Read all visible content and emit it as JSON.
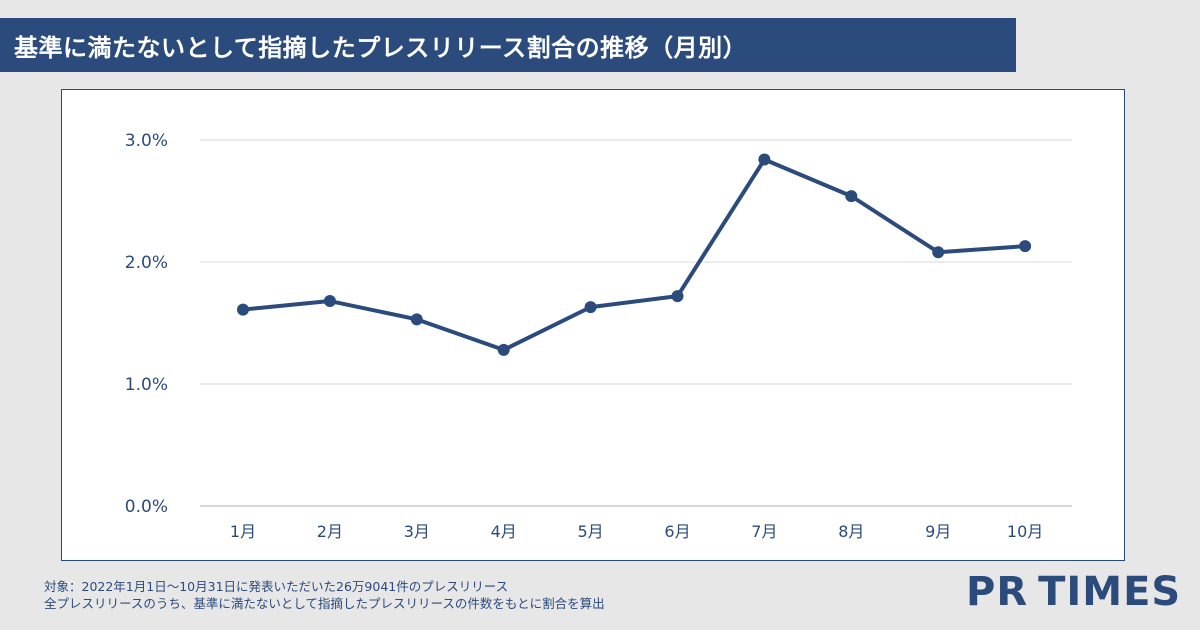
{
  "title": "基準に満たないとして指摘したプレスリリース割合の推移（月別）",
  "chart_data": {
    "type": "line",
    "title": "基準に満たないとして指摘したプレスリリース割合の推移（月別）",
    "xlabel": "",
    "ylabel": "",
    "categories": [
      "1月",
      "2月",
      "3月",
      "4月",
      "5月",
      "6月",
      "7月",
      "8月",
      "9月",
      "10月"
    ],
    "series": [
      {
        "name": "割合",
        "values": [
          1.61,
          1.68,
          1.53,
          1.28,
          1.63,
          1.72,
          2.84,
          2.54,
          2.08,
          2.13
        ]
      }
    ],
    "ylim": [
      0,
      3
    ],
    "yticks": [
      0,
      1,
      2,
      3
    ],
    "ytick_labels": [
      "0.0%",
      "1.0%",
      "2.0%",
      "3.0%"
    ],
    "grid": true,
    "colors": {
      "line": "#2b4b7c",
      "grid": "#d9d9d9",
      "axis": "#bfbfbf",
      "tick_text": "#2b4b7c"
    }
  },
  "footnote": {
    "line1": "対象：2022年1月1日～10月31日に発表いただいた26万9041件のプレスリリース",
    "line2": "全プレスリリースのうち、基準に満たないとして指摘したプレスリリースの件数をもとに割合を算出"
  },
  "logo": {
    "part1": "PR",
    "part2": "TIMES"
  }
}
